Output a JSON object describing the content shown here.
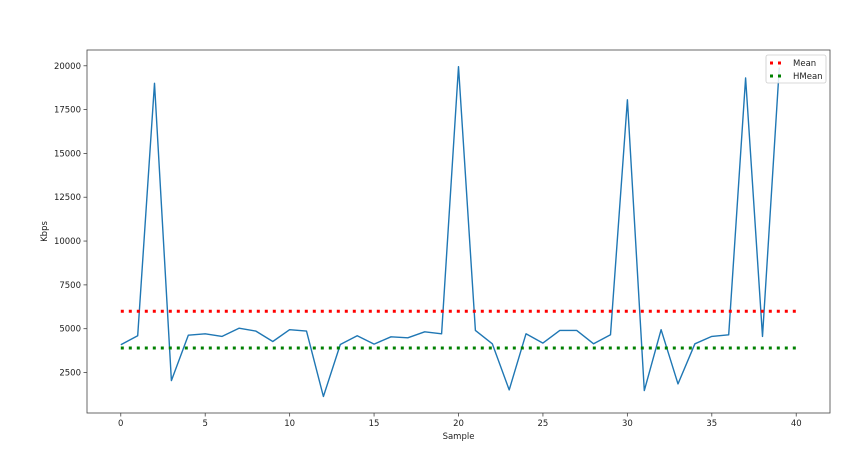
{
  "chart_data": {
    "type": "line",
    "title": "",
    "xlabel": "Sample",
    "ylabel": "Kbps",
    "xlim": [
      -2,
      42
    ],
    "ylim": [
      190,
      20900
    ],
    "xticks": [
      0,
      5,
      10,
      15,
      20,
      25,
      30,
      35,
      40
    ],
    "yticks": [
      2500,
      5000,
      7500,
      10000,
      12500,
      15000,
      17500,
      20000
    ],
    "grid": false,
    "legend_position": "top-right",
    "series": [
      {
        "color": "#1f77b4",
        "style": "solid",
        "x": [
          0,
          1,
          2,
          3,
          4,
          5,
          6,
          7,
          8,
          9,
          10,
          11,
          12,
          13,
          14,
          15,
          16,
          17,
          18,
          19,
          20,
          21,
          22,
          23,
          24,
          25,
          26,
          27,
          28,
          29,
          30,
          31,
          32,
          33,
          34,
          35,
          36,
          37,
          38,
          39
        ],
        "y": [
          4080,
          4600,
          19000,
          2040,
          4630,
          4710,
          4560,
          5030,
          4860,
          4270,
          4940,
          4860,
          1130,
          4100,
          4600,
          4120,
          4540,
          4480,
          4820,
          4710,
          19950,
          4900,
          4140,
          1510,
          4710,
          4180,
          4900,
          4900,
          4140,
          4650,
          18060,
          1470,
          4940,
          1850,
          4140,
          4560,
          4650,
          19300,
          4560,
          19900
        ]
      },
      {
        "name": "Mean",
        "color": "#ff0000",
        "style": "dotted",
        "x": [
          0,
          40
        ],
        "y": [
          6000,
          6000
        ]
      },
      {
        "name": "HMean",
        "color": "#008000",
        "style": "dotted",
        "x": [
          0,
          40
        ],
        "y": [
          3900,
          3900
        ]
      }
    ]
  }
}
